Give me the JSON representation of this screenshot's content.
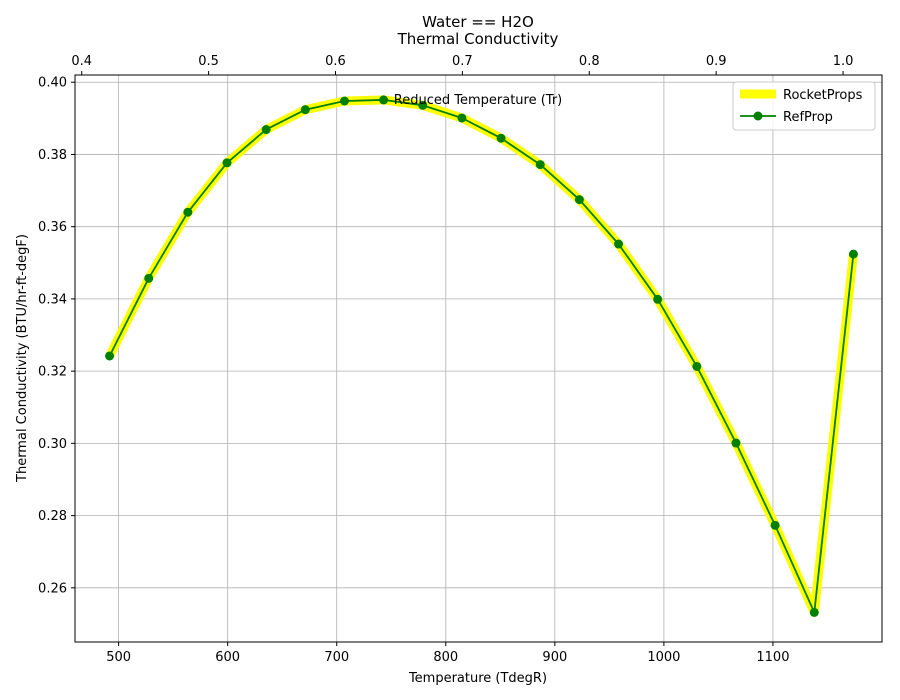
{
  "chart_data": {
    "type": "line",
    "title_line1": "Water == H2O",
    "title_line2": "Thermal Conductivity",
    "xlabel": "Temperature (TdegR)",
    "ylabel": "Thermal Conductivity (BTU/hr-ft-degF)",
    "top_axis_label": "Reduced Temperature (Tr)",
    "xlim": [
      460,
      1200
    ],
    "ylim": [
      0.245,
      0.402
    ],
    "top_xlim": [
      0.3947,
      1.0307
    ],
    "x_ticks": [
      500,
      600,
      700,
      800,
      900,
      1000,
      1100
    ],
    "x_tick_labels": [
      "500",
      "600",
      "700",
      "800",
      "900",
      "1000",
      "1100"
    ],
    "y_ticks": [
      0.26,
      0.28,
      0.3,
      0.32,
      0.34,
      0.36,
      0.38,
      0.4
    ],
    "y_tick_labels": [
      "0.26",
      "0.28",
      "0.30",
      "0.32",
      "0.34",
      "0.36",
      "0.38",
      "0.40"
    ],
    "top_ticks": [
      0.4,
      0.5,
      0.6,
      0.7,
      0.8,
      0.9,
      1.0
    ],
    "top_tick_labels": [
      "0.4",
      "0.5",
      "0.6",
      "0.7",
      "0.8",
      "0.9",
      "1.0"
    ],
    "grid": true,
    "legend_position": "top-right",
    "x": [
      491.7,
      527.6,
      563.5,
      599.4,
      635.3,
      671.2,
      707.1,
      743.0,
      778.9,
      814.8,
      850.7,
      886.6,
      922.5,
      958.4,
      994.3,
      1030.2,
      1066.1,
      1102.0,
      1137.9,
      1173.8
    ],
    "series": [
      {
        "name": "RocketProps",
        "color": "#ffff00",
        "style": "thick-line",
        "values": [
          0.3242,
          0.3457,
          0.364,
          0.3777,
          0.3869,
          0.3924,
          0.3948,
          0.3951,
          0.3936,
          0.3901,
          0.3845,
          0.3772,
          0.3675,
          0.3552,
          0.3399,
          0.3213,
          0.3001,
          0.2773,
          0.2532,
          0.3524
        ]
      },
      {
        "name": "RefProp",
        "color": "#008000",
        "style": "line-with-markers",
        "values": [
          0.3242,
          0.3457,
          0.364,
          0.3777,
          0.3869,
          0.3924,
          0.3948,
          0.3951,
          0.3936,
          0.3901,
          0.3845,
          0.3772,
          0.3675,
          0.3552,
          0.3399,
          0.3213,
          0.3001,
          0.2773,
          0.2532,
          0.3524
        ]
      }
    ]
  }
}
